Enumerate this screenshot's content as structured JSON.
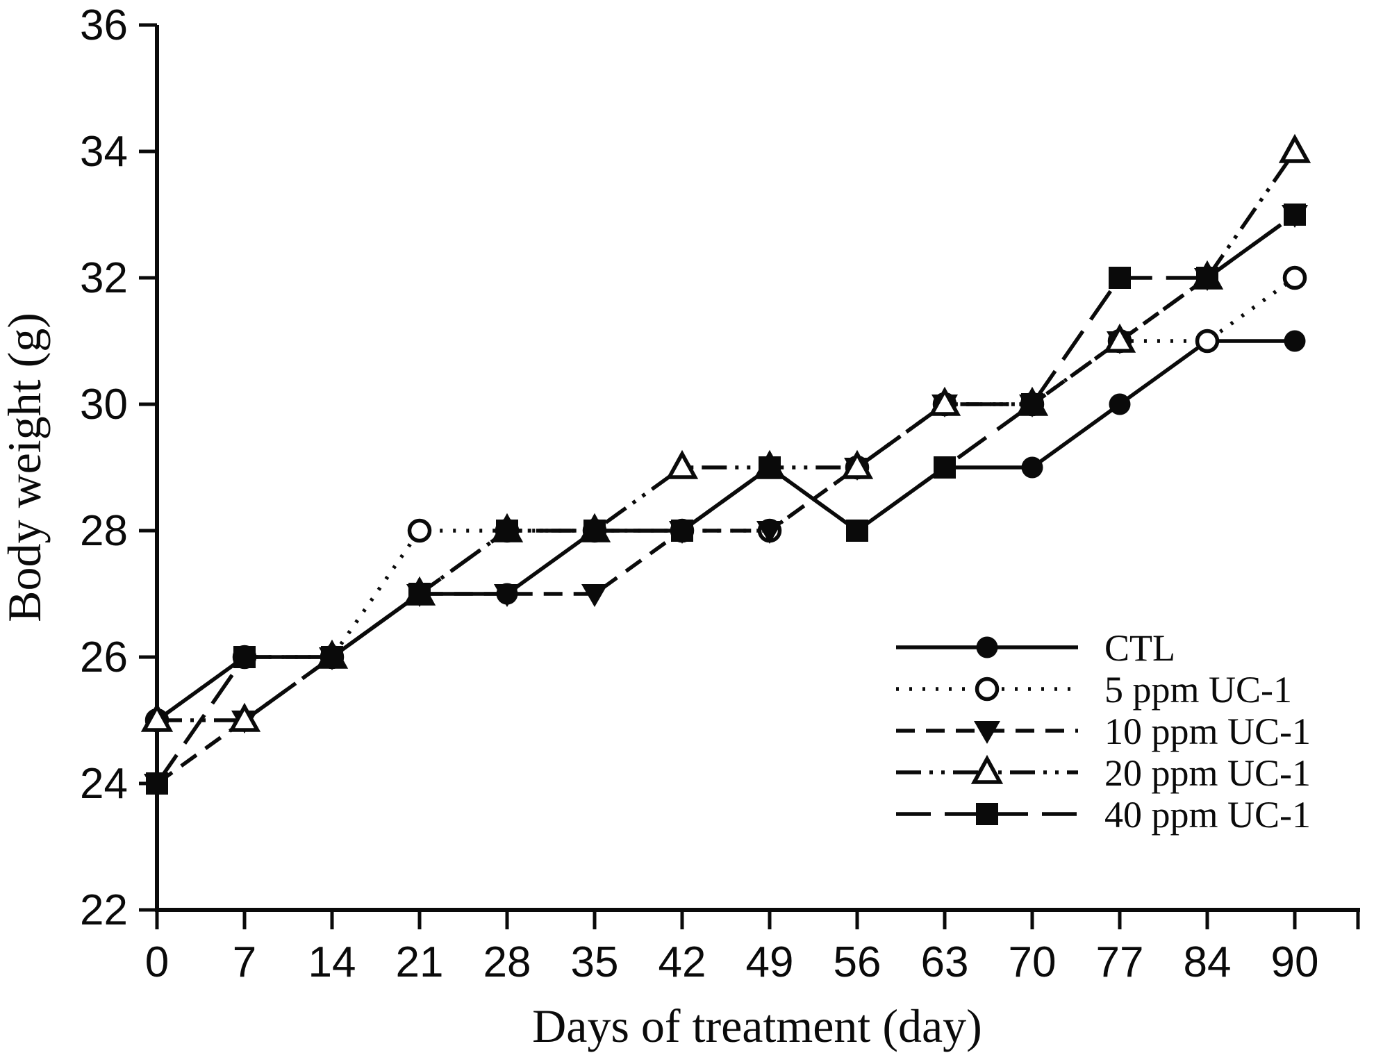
{
  "chart_data": {
    "type": "line",
    "title": "",
    "xlabel": "Days of treatment (day)",
    "ylabel": "Body weight (g)",
    "x_ticks": [
      0,
      7,
      14,
      21,
      28,
      35,
      42,
      49,
      56,
      63,
      70,
      77,
      84,
      90
    ],
    "y_ticks": [
      22,
      24,
      26,
      28,
      30,
      32,
      34,
      36
    ],
    "ylim": [
      22,
      36
    ],
    "grid": false,
    "legend_position": "inside lower right",
    "categories": [
      0,
      7,
      14,
      21,
      28,
      35,
      42,
      49,
      56,
      63,
      70,
      77,
      84,
      90
    ],
    "series": [
      {
        "name": "CTL",
        "marker": "filled-circle",
        "line_style": "solid",
        "values": [
          25,
          26,
          26,
          27,
          27,
          28,
          28,
          29,
          28,
          29,
          29,
          30,
          31,
          31
        ]
      },
      {
        "name": "5 ppm UC-1",
        "marker": "open-circle",
        "line_style": "dotted",
        "values": [
          25,
          26,
          26,
          28,
          28,
          28,
          28,
          28,
          29,
          30,
          30,
          31,
          31,
          32
        ]
      },
      {
        "name": "10 ppm UC-1",
        "marker": "filled-triangle-down",
        "line_style": "dashed",
        "values": [
          24,
          25,
          26,
          27,
          27,
          27,
          28,
          28,
          29,
          30,
          30,
          31,
          32,
          33
        ]
      },
      {
        "name": "20 ppm UC-1",
        "marker": "open-triangle-up",
        "line_style": "dash-dot-dot",
        "values": [
          25,
          25,
          26,
          27,
          28,
          28,
          29,
          29,
          29,
          30,
          30,
          31,
          32,
          34
        ]
      },
      {
        "name": "40 ppm UC-1",
        "marker": "filled-square",
        "line_style": "long-dash",
        "values": [
          24,
          26,
          26,
          27,
          28,
          28,
          28,
          29,
          28,
          29,
          30,
          32,
          32,
          33
        ]
      }
    ]
  },
  "colors": {
    "ink": "#0a0a0a",
    "background": "#ffffff"
  }
}
